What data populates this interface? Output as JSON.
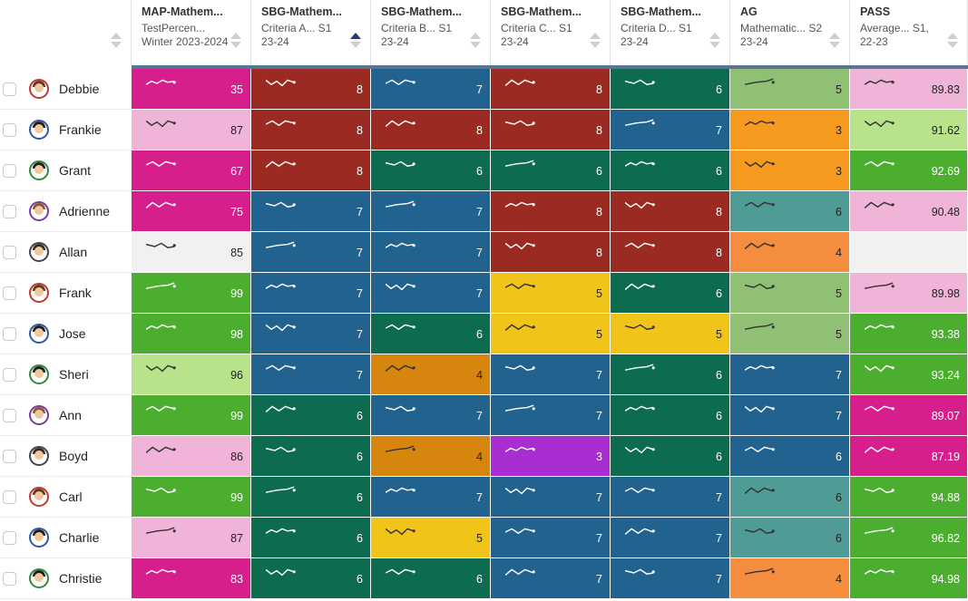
{
  "columns": [
    {
      "title": "MAP-Mathem...",
      "sub": "TestPercen... Winter 2023-2024",
      "sort": "none"
    },
    {
      "title": "SBG-Mathem...",
      "sub": "Criteria A... S1 23-24",
      "sort": "asc"
    },
    {
      "title": "SBG-Mathem...",
      "sub": "Criteria B... S1 23-24",
      "sort": "none"
    },
    {
      "title": "SBG-Mathem...",
      "sub": "Criteria C... S1 23-24",
      "sort": "none"
    },
    {
      "title": "SBG-Mathem...",
      "sub": "Criteria D... S1 23-24",
      "sort": "none"
    },
    {
      "title": "AG",
      "sub": "Mathematic... S2 23-24",
      "sort": "none"
    },
    {
      "title": "PASS",
      "sub": "Average... S1, 22-23",
      "sort": "none"
    }
  ],
  "colors": {
    "magenta": "#d61f8c",
    "pink": "#efb4d8",
    "green": "#4cae2f",
    "lightgreen": "#b9e38a",
    "red": "#9b2a22",
    "blue": "#21628f",
    "teal": "#0d6b50",
    "yellow": "#f0c419",
    "orange": "#d6860f",
    "purple": "#a82ed2",
    "agorange": "#f58d3e",
    "agteal": "#4f9b96",
    "aggreen": "#8fc073",
    "ltorange": "#f79a20",
    "gray": "#f1f1f1"
  },
  "rows": [
    {
      "name": "Debbie",
      "avatar": "female-avatar",
      "cells": [
        [
          "35",
          "magenta"
        ],
        [
          "8",
          "red"
        ],
        [
          "7",
          "blue"
        ],
        [
          "8",
          "red"
        ],
        [
          "6",
          "teal"
        ],
        [
          "5",
          "aggreen"
        ],
        [
          "89.83",
          "pink"
        ]
      ]
    },
    {
      "name": "Frankie",
      "avatar": "male-avatar",
      "cells": [
        [
          "87",
          "pink"
        ],
        [
          "8",
          "red"
        ],
        [
          "8",
          "red"
        ],
        [
          "8",
          "red"
        ],
        [
          "7",
          "blue"
        ],
        [
          "3",
          "ltorange"
        ],
        [
          "91.62",
          "lightgreen"
        ]
      ]
    },
    {
      "name": "Grant",
      "avatar": "male-avatar",
      "cells": [
        [
          "67",
          "magenta"
        ],
        [
          "8",
          "red"
        ],
        [
          "6",
          "teal"
        ],
        [
          "6",
          "teal"
        ],
        [
          "6",
          "teal"
        ],
        [
          "3",
          "ltorange"
        ],
        [
          "92.69",
          "green"
        ]
      ]
    },
    {
      "name": "Adrienne",
      "avatar": "female-avatar",
      "cells": [
        [
          "75",
          "magenta"
        ],
        [
          "7",
          "blue"
        ],
        [
          "7",
          "blue"
        ],
        [
          "8",
          "red"
        ],
        [
          "8",
          "red"
        ],
        [
          "6",
          "agteal"
        ],
        [
          "90.48",
          "pink"
        ]
      ]
    },
    {
      "name": "Allan",
      "avatar": "male-avatar",
      "cells": [
        [
          "85",
          "gray"
        ],
        [
          "7",
          "blue"
        ],
        [
          "7",
          "blue"
        ],
        [
          "8",
          "red"
        ],
        [
          "8",
          "red"
        ],
        [
          "4",
          "agorange"
        ],
        [
          "",
          "gray"
        ]
      ]
    },
    {
      "name": "Frank",
      "avatar": "male-avatar",
      "cells": [
        [
          "99",
          "green"
        ],
        [
          "7",
          "blue"
        ],
        [
          "7",
          "blue"
        ],
        [
          "5",
          "yellow"
        ],
        [
          "6",
          "teal"
        ],
        [
          "5",
          "aggreen"
        ],
        [
          "89.98",
          "pink"
        ]
      ]
    },
    {
      "name": "Jose",
      "avatar": "male-avatar",
      "cells": [
        [
          "98",
          "green"
        ],
        [
          "7",
          "blue"
        ],
        [
          "6",
          "teal"
        ],
        [
          "5",
          "yellow"
        ],
        [
          "5",
          "yellow"
        ],
        [
          "5",
          "aggreen"
        ],
        [
          "93.38",
          "green"
        ]
      ]
    },
    {
      "name": "Sheri",
      "avatar": "female-avatar",
      "cells": [
        [
          "96",
          "lightgreen"
        ],
        [
          "7",
          "blue"
        ],
        [
          "4",
          "orange"
        ],
        [
          "7",
          "blue"
        ],
        [
          "6",
          "teal"
        ],
        [
          "7",
          "blue"
        ],
        [
          "93.24",
          "green"
        ]
      ]
    },
    {
      "name": "Ann",
      "avatar": "female-avatar",
      "cells": [
        [
          "99",
          "green"
        ],
        [
          "6",
          "teal"
        ],
        [
          "7",
          "blue"
        ],
        [
          "7",
          "blue"
        ],
        [
          "6",
          "teal"
        ],
        [
          "7",
          "blue"
        ],
        [
          "89.07",
          "magenta"
        ]
      ]
    },
    {
      "name": "Boyd",
      "avatar": "male-avatar",
      "cells": [
        [
          "86",
          "pink"
        ],
        [
          "6",
          "teal"
        ],
        [
          "4",
          "orange"
        ],
        [
          "3",
          "purple"
        ],
        [
          "6",
          "teal"
        ],
        [
          "6",
          "blue"
        ],
        [
          "87.19",
          "magenta"
        ]
      ]
    },
    {
      "name": "Carl",
      "avatar": "male-avatar",
      "cells": [
        [
          "99",
          "green"
        ],
        [
          "6",
          "teal"
        ],
        [
          "7",
          "blue"
        ],
        [
          "7",
          "blue"
        ],
        [
          "7",
          "blue"
        ],
        [
          "6",
          "agteal"
        ],
        [
          "94.88",
          "green"
        ]
      ]
    },
    {
      "name": "Charlie",
      "avatar": "female-avatar",
      "cells": [
        [
          "87",
          "pink"
        ],
        [
          "6",
          "teal"
        ],
        [
          "5",
          "yellow"
        ],
        [
          "7",
          "blue"
        ],
        [
          "7",
          "blue"
        ],
        [
          "6",
          "agteal"
        ],
        [
          "96.82",
          "green"
        ]
      ]
    },
    {
      "name": "Christie",
      "avatar": "female-avatar",
      "cells": [
        [
          "83",
          "magenta"
        ],
        [
          "6",
          "teal"
        ],
        [
          "6",
          "teal"
        ],
        [
          "7",
          "blue"
        ],
        [
          "7",
          "blue"
        ],
        [
          "4",
          "agorange"
        ],
        [
          "94.98",
          "green"
        ]
      ]
    }
  ]
}
